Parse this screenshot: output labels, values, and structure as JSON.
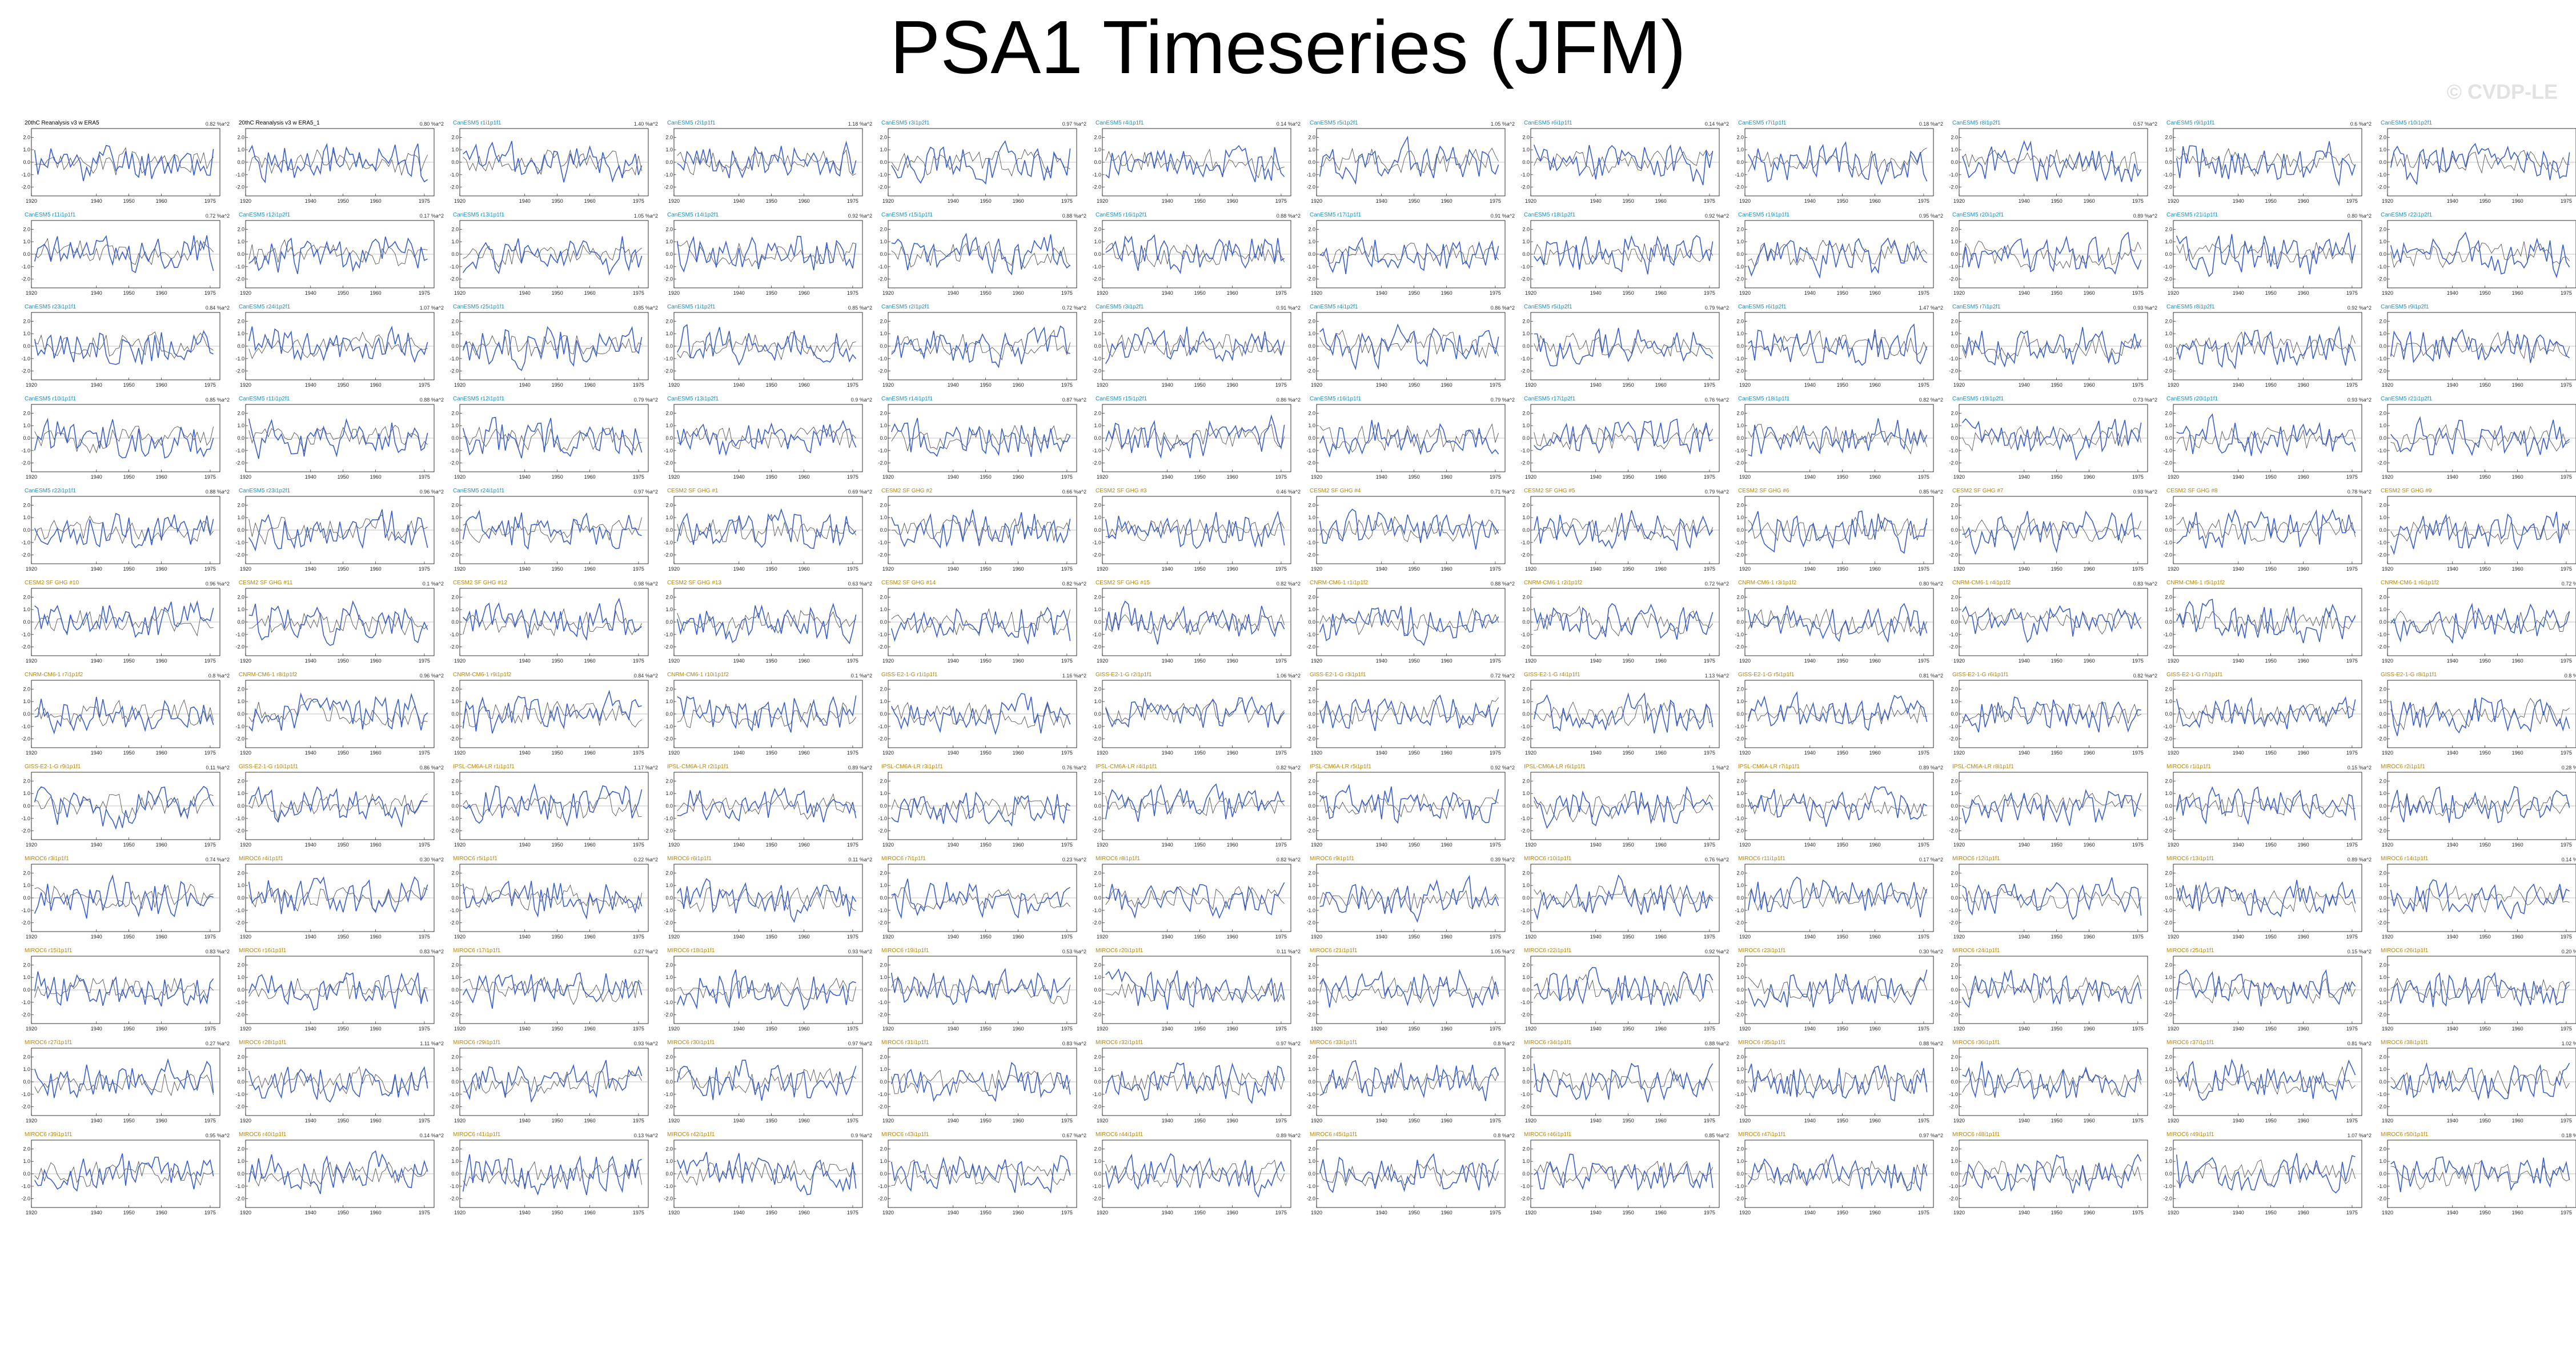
{
  "page": {
    "title": "PSA1 Timeseries (JFM)",
    "watermark": "© CVDP-LE"
  },
  "colors": {
    "observed_line": "#3a5fcd",
    "reference_line": "#555555",
    "zero_line": "#888888",
    "cesm_title": "#1e8fbf",
    "obs_title": "#000000",
    "other_title": "#b8860b"
  },
  "chart_data": {
    "type": "line",
    "rows": 13,
    "cols": 12,
    "x": [
      1920,
      1930,
      1940,
      1950,
      1960,
      1970,
      1975
    ],
    "xticks": [
      "1920",
      "1940",
      "1950",
      "1960",
      "1975"
    ],
    "yticks": [
      "2.0",
      "1.0",
      "0.0",
      "-1.0",
      "-2.0"
    ],
    "ylim": [
      -2.7,
      2.7
    ],
    "panels": [
      {
        "title": "20thC Reanalysis v3 w ERA5",
        "variance": "0.82 %a^2",
        "kind": "obs"
      },
      {
        "title": "20thC Reanalysis v3 w ERA5_1",
        "variance": "0.80 %a^2",
        "kind": "obs"
      },
      {
        "title": "CanESM5 r1i1p1f1",
        "variance": "1.40 %a^2",
        "kind": "cesm"
      },
      {
        "title": "CanESM5 r2i1p1f1",
        "variance": "1.18 %a^2",
        "kind": "cesm"
      },
      {
        "title": "CanESM5 r3i1p2f1",
        "variance": "0.97 %a^2",
        "kind": "cesm"
      },
      {
        "title": "CanESM5 r4i1p1f1",
        "variance": "0.14 %a^2",
        "kind": "cesm"
      },
      {
        "title": "CanESM5 r5i1p2f1",
        "variance": "1.05 %a^2",
        "kind": "cesm"
      },
      {
        "title": "CanESM5 r6i1p1f1",
        "variance": "0.14 %a^2",
        "kind": "cesm"
      },
      {
        "title": "CanESM5 r7i1p1f1",
        "variance": "0.18 %a^2",
        "kind": "cesm"
      },
      {
        "title": "CanESM5 r8i1p2f1",
        "variance": "0.57 %a^2",
        "kind": "cesm"
      },
      {
        "title": "CanESM5 r9i1p1f1",
        "variance": "0.6 %a^2",
        "kind": "cesm"
      },
      {
        "title": "CanESM5 r10i1p2f1",
        "variance": "",
        "kind": "cesm"
      },
      {
        "title": "CanESM5 r11i1p1f1",
        "variance": "0.72 %a^2",
        "kind": "cesm"
      },
      {
        "title": "CanESM5 r12i1p2f1",
        "variance": "0.17 %a^2",
        "kind": "cesm"
      },
      {
        "title": "CanESM5 r13i1p1f1",
        "variance": "1.05 %a^2",
        "kind": "cesm"
      },
      {
        "title": "CanESM5 r14i1p2f1",
        "variance": "0.92 %a^2",
        "kind": "cesm"
      },
      {
        "title": "CanESM5 r15i1p1f1",
        "variance": "0.88 %a^2",
        "kind": "cesm"
      },
      {
        "title": "CanESM5 r16i1p2f1",
        "variance": "0.88 %a^2",
        "kind": "cesm"
      },
      {
        "title": "CanESM5 r17i1p1f1",
        "variance": "0.91 %a^2",
        "kind": "cesm"
      },
      {
        "title": "CanESM5 r18i1p2f1",
        "variance": "0.92 %a^2",
        "kind": "cesm"
      },
      {
        "title": "CanESM5 r19i1p1f1",
        "variance": "0.95 %a^2",
        "kind": "cesm"
      },
      {
        "title": "CanESM5 r20i1p2f1",
        "variance": "0.89 %a^2",
        "kind": "cesm"
      },
      {
        "title": "CanESM5 r21i1p1f1",
        "variance": "0.80 %a^2",
        "kind": "cesm"
      },
      {
        "title": "CanESM5 r22i1p2f1",
        "variance": "",
        "kind": "cesm"
      },
      {
        "title": "CanESM5 r23i1p1f1",
        "variance": "0.84 %a^2",
        "kind": "cesm"
      },
      {
        "title": "CanESM5 r24i1p2f1",
        "variance": "1.07 %a^2",
        "kind": "cesm"
      },
      {
        "title": "CanESM5 r25i1p1f1",
        "variance": "0.85 %a^2",
        "kind": "cesm"
      },
      {
        "title": "CanESM5 r1i1p2f1",
        "variance": "0.85 %a^2",
        "kind": "cesm"
      },
      {
        "title": "CanESM5 r2i1p2f1",
        "variance": "0.72 %a^2",
        "kind": "cesm"
      },
      {
        "title": "CanESM5 r3i1p2f1",
        "variance": "0.91 %a^2",
        "kind": "cesm"
      },
      {
        "title": "CanESM5 r4i1p2f1",
        "variance": "0.86 %a^2",
        "kind": "cesm"
      },
      {
        "title": "CanESM5 r5i1p2f1",
        "variance": "0.79 %a^2",
        "kind": "cesm"
      },
      {
        "title": "CanESM5 r6i1p2f1",
        "variance": "1.47 %a^2",
        "kind": "cesm"
      },
      {
        "title": "CanESM5 r7i1p2f1",
        "variance": "0.93 %a^2",
        "kind": "cesm"
      },
      {
        "title": "CanESM5 r8i1p2f1",
        "variance": "0.92 %a^2",
        "kind": "cesm"
      },
      {
        "title": "CanESM5 r9i1p2f1",
        "variance": "",
        "kind": "cesm"
      },
      {
        "title": "CanESM5 r10i1p1f1",
        "variance": "0.85 %a^2",
        "kind": "cesm"
      },
      {
        "title": "CanESM5 r11i1p2f1",
        "variance": "0.88 %a^2",
        "kind": "cesm"
      },
      {
        "title": "CanESM5 r12i1p1f1",
        "variance": "0.79 %a^2",
        "kind": "cesm"
      },
      {
        "title": "CanESM5 r13i1p2f1",
        "variance": "0.9 %a^2",
        "kind": "cesm"
      },
      {
        "title": "CanESM5 r14i1p1f1",
        "variance": "0.87 %a^2",
        "kind": "cesm"
      },
      {
        "title": "CanESM5 r15i1p2f1",
        "variance": "0.86 %a^2",
        "kind": "cesm"
      },
      {
        "title": "CanESM5 r16i1p1f1",
        "variance": "0.79 %a^2",
        "kind": "cesm"
      },
      {
        "title": "CanESM5 r17i1p2f1",
        "variance": "0.76 %a^2",
        "kind": "cesm"
      },
      {
        "title": "CanESM5 r18i1p1f1",
        "variance": "0.82 %a^2",
        "kind": "cesm"
      },
      {
        "title": "CanESM5 r19i1p2f1",
        "variance": "0.73 %a^2",
        "kind": "cesm"
      },
      {
        "title": "CanESM5 r20i1p1f1",
        "variance": "0.93 %a^2",
        "kind": "cesm"
      },
      {
        "title": "CanESM5 r21i1p2f1",
        "variance": "",
        "kind": "cesm"
      },
      {
        "title": "CanESM5 r22i1p1f1",
        "variance": "0.88 %a^2",
        "kind": "cesm"
      },
      {
        "title": "CanESM5 r23i1p2f1",
        "variance": "0.96 %a^2",
        "kind": "cesm"
      },
      {
        "title": "CanESM5 r24i1p1f1",
        "variance": "0.97 %a^2",
        "kind": "cesm"
      },
      {
        "title": "CESM2 SF GHG #1",
        "variance": "0.69 %a^2",
        "kind": "other"
      },
      {
        "title": "CESM2 SF GHG #2",
        "variance": "0.66 %a^2",
        "kind": "other"
      },
      {
        "title": "CESM2 SF GHG #3",
        "variance": "0.46 %a^2",
        "kind": "other"
      },
      {
        "title": "CESM2 SF GHG #4",
        "variance": "0.71 %a^2",
        "kind": "other"
      },
      {
        "title": "CESM2 SF GHG #5",
        "variance": "0.79 %a^2",
        "kind": "other"
      },
      {
        "title": "CESM2 SF GHG #6",
        "variance": "0.85 %a^2",
        "kind": "other"
      },
      {
        "title": "CESM2 SF GHG #7",
        "variance": "0.93 %a^2",
        "kind": "other"
      },
      {
        "title": "CESM2 SF GHG #8",
        "variance": "0.78 %a^2",
        "kind": "other"
      },
      {
        "title": "CESM2 SF GHG #9",
        "variance": "",
        "kind": "other"
      },
      {
        "title": "CESM2 SF GHG #10",
        "variance": "0.96 %a^2",
        "kind": "other"
      },
      {
        "title": "CESM2 SF GHG #11",
        "variance": "0.1 %a^2",
        "kind": "other"
      },
      {
        "title": "CESM2 SF GHG #12",
        "variance": "0.98 %a^2",
        "kind": "other"
      },
      {
        "title": "CESM2 SF GHG #13",
        "variance": "0.63 %a^2",
        "kind": "other"
      },
      {
        "title": "CESM2 SF GHG #14",
        "variance": "0.82 %a^2",
        "kind": "other"
      },
      {
        "title": "CESM2 SF GHG #15",
        "variance": "0.82 %a^2",
        "kind": "other"
      },
      {
        "title": "CNRM-CM6-1 r1i1p1f2",
        "variance": "0.88 %a^2",
        "kind": "other"
      },
      {
        "title": "CNRM-CM6-1 r2i1p1f2",
        "variance": "0.72 %a^2",
        "kind": "other"
      },
      {
        "title": "CNRM-CM6-1 r3i1p1f2",
        "variance": "0.80 %a^2",
        "kind": "other"
      },
      {
        "title": "CNRM-CM6-1 r4i1p1f2",
        "variance": "0.83 %a^2",
        "kind": "other"
      },
      {
        "title": "CNRM-CM6-1 r5i1p1f2",
        "variance": "",
        "kind": "other"
      },
      {
        "title": "CNRM-CM6-1 r6i1p1f2",
        "variance": "0.72 %a^2",
        "kind": "other"
      },
      {
        "title": "CNRM-CM6-1 r7i1p1f2",
        "variance": "0.8 %a^2",
        "kind": "other"
      },
      {
        "title": "CNRM-CM6-1 r8i1p1f2",
        "variance": "0.96 %a^2",
        "kind": "other"
      },
      {
        "title": "CNRM-CM6-1 r9i1p1f2",
        "variance": "0.84 %a^2",
        "kind": "other"
      },
      {
        "title": "CNRM-CM6-1 r10i1p1f2",
        "variance": "0.1 %a^2",
        "kind": "other"
      },
      {
        "title": "GISS-E2-1-G r1i1p1f1",
        "variance": "1.16 %a^2",
        "kind": "other"
      },
      {
        "title": "GISS-E2-1-G r2i1p1f1",
        "variance": "1.06 %a^2",
        "kind": "other"
      },
      {
        "title": "GISS-E2-1-G r3i1p1f1",
        "variance": "0.72 %a^2",
        "kind": "other"
      },
      {
        "title": "GISS-E2-1-G r4i1p1f1",
        "variance": "1.13 %a^2",
        "kind": "other"
      },
      {
        "title": "GISS-E2-1-G r5i1p1f1",
        "variance": "0.81 %a^2",
        "kind": "other"
      },
      {
        "title": "GISS-E2-1-G r6i1p1f1",
        "variance": "0.82 %a^2",
        "kind": "other"
      },
      {
        "title": "GISS-E2-1-G r7i1p1f1",
        "variance": "",
        "kind": "other"
      },
      {
        "title": "GISS-E2-1-G r8i1p1f1",
        "variance": "0.8 %a^2",
        "kind": "other"
      },
      {
        "title": "GISS-E2-1-G r9i1p1f1",
        "variance": "0.11 %a^2",
        "kind": "other"
      },
      {
        "title": "GISS-E2-1-G r10i1p1f1",
        "variance": "0.86 %a^2",
        "kind": "other"
      },
      {
        "title": "IPSL-CM6A-LR r1i1p1f1",
        "variance": "1.17 %a^2",
        "kind": "other"
      },
      {
        "title": "IPSL-CM6A-LR r2i1p1f1",
        "variance": "0.89 %a^2",
        "kind": "other"
      },
      {
        "title": "IPSL-CM6A-LR r3i1p1f1",
        "variance": "0.76 %a^2",
        "kind": "other"
      },
      {
        "title": "IPSL-CM6A-LR r4i1p1f1",
        "variance": "0.82 %a^2",
        "kind": "other"
      },
      {
        "title": "IPSL-CM6A-LR r5i1p1f1",
        "variance": "0.92 %a^2",
        "kind": "other"
      },
      {
        "title": "IPSL-CM6A-LR r6i1p1f1",
        "variance": "1 %a^2",
        "kind": "other"
      },
      {
        "title": "IPSL-CM6A-LR r7i1p1f1",
        "variance": "0.89 %a^2",
        "kind": "other"
      },
      {
        "title": "IPSL-CM6A-LR r8i1p1f1",
        "variance": "",
        "kind": "other"
      },
      {
        "title": "MIROC6 r1i1p1f1",
        "variance": "0.15 %a^2",
        "kind": "other"
      },
      {
        "title": "MIROC6 r2i1p1f1",
        "variance": "0.28 %a^2",
        "kind": "other"
      },
      {
        "title": "MIROC6 r3i1p1f1",
        "variance": "0.74 %a^2",
        "kind": "other"
      },
      {
        "title": "MIROC6 r4i1p1f1",
        "variance": "0.30 %a^2",
        "kind": "other"
      },
      {
        "title": "MIROC6 r5i1p1f1",
        "variance": "0.22 %a^2",
        "kind": "other"
      },
      {
        "title": "MIROC6 r6i1p1f1",
        "variance": "0.11 %a^2",
        "kind": "other"
      },
      {
        "title": "MIROC6 r7i1p1f1",
        "variance": "0.23 %a^2",
        "kind": "other"
      },
      {
        "title": "MIROC6 r8i1p1f1",
        "variance": "0.82 %a^2",
        "kind": "other"
      },
      {
        "title": "MIROC6 r9i1p1f1",
        "variance": "0.39 %a^2",
        "kind": "other"
      },
      {
        "title": "MIROC6 r10i1p1f1",
        "variance": "0.76 %a^2",
        "kind": "other"
      },
      {
        "title": "MIROC6 r11i1p1f1",
        "variance": "0.17 %a^2",
        "kind": "other"
      },
      {
        "title": "MIROC6 r12i1p1f1",
        "variance": "",
        "kind": "other"
      },
      {
        "title": "MIROC6 r13i1p1f1",
        "variance": "0.89 %a^2",
        "kind": "other"
      },
      {
        "title": "MIROC6 r14i1p1f1",
        "variance": "0.14 %a^2",
        "kind": "other"
      },
      {
        "title": "MIROC6 r15i1p1f1",
        "variance": "0.83 %a^2",
        "kind": "other"
      },
      {
        "title": "MIROC6 r16i1p1f1",
        "variance": "0.83 %a^2",
        "kind": "other"
      },
      {
        "title": "MIROC6 r17i1p1f1",
        "variance": "0.27 %a^2",
        "kind": "other"
      },
      {
        "title": "MIROC6 r18i1p1f1",
        "variance": "0.93 %a^2",
        "kind": "other"
      },
      {
        "title": "MIROC6 r19i1p1f1",
        "variance": "0.53 %a^2",
        "kind": "other"
      },
      {
        "title": "MIROC6 r20i1p1f1",
        "variance": "0.11 %a^2",
        "kind": "other"
      },
      {
        "title": "MIROC6 r21i1p1f1",
        "variance": "1.05 %a^2",
        "kind": "other"
      },
      {
        "title": "MIROC6 r22i1p1f1",
        "variance": "0.92 %a^2",
        "kind": "other"
      },
      {
        "title": "MIROC6 r23i1p1f1",
        "variance": "0.30 %a^2",
        "kind": "other"
      },
      {
        "title": "MIROC6 r24i1p1f1",
        "variance": "",
        "kind": "other"
      },
      {
        "title": "MIROC6 r25i1p1f1",
        "variance": "0.15 %a^2",
        "kind": "other"
      },
      {
        "title": "MIROC6 r26i1p1f1",
        "variance": "0.20 %a^2",
        "kind": "other"
      },
      {
        "title": "MIROC6 r27i1p1f1",
        "variance": "0.27 %a^2",
        "kind": "other"
      },
      {
        "title": "MIROC6 r28i1p1f1",
        "variance": "1.11 %a^2",
        "kind": "other"
      },
      {
        "title": "MIROC6 r29i1p1f1",
        "variance": "0.93 %a^2",
        "kind": "other"
      },
      {
        "title": "MIROC6 r30i1p1f1",
        "variance": "0.97 %a^2",
        "kind": "other"
      },
      {
        "title": "MIROC6 r31i1p1f1",
        "variance": "0.83 %a^2",
        "kind": "other"
      },
      {
        "title": "MIROC6 r32i1p1f1",
        "variance": "0.97 %a^2",
        "kind": "other"
      },
      {
        "title": "MIROC6 r33i1p1f1",
        "variance": "0.8 %a^2",
        "kind": "other"
      },
      {
        "title": "MIROC6 r34i1p1f1",
        "variance": "0.88 %a^2",
        "kind": "other"
      },
      {
        "title": "MIROC6 r35i1p1f1",
        "variance": "0.88 %a^2",
        "kind": "other"
      },
      {
        "title": "MIROC6 r36i1p1f1",
        "variance": "",
        "kind": "other"
      },
      {
        "title": "MIROC6 r37i1p1f1",
        "variance": "0.81 %a^2",
        "kind": "other"
      },
      {
        "title": "MIROC6 r38i1p1f1",
        "variance": "1.02 %a^2",
        "kind": "other"
      },
      {
        "title": "MIROC6 r39i1p1f1",
        "variance": "0.95 %a^2",
        "kind": "other"
      },
      {
        "title": "MIROC6 r40i1p1f1",
        "variance": "0.14 %a^2",
        "kind": "other"
      },
      {
        "title": "MIROC6 r41i1p1f1",
        "variance": "0.13 %a^2",
        "kind": "other"
      },
      {
        "title": "MIROC6 r42i1p1f1",
        "variance": "0.9 %a^2",
        "kind": "other"
      },
      {
        "title": "MIROC6 r43i1p1f1",
        "variance": "0.67 %a^2",
        "kind": "other"
      },
      {
        "title": "MIROC6 r44i1p1f1",
        "variance": "0.89 %a^2",
        "kind": "other"
      },
      {
        "title": "MIROC6 r45i1p1f1",
        "variance": "0.8 %a^2",
        "kind": "other"
      },
      {
        "title": "MIROC6 r46i1p1f1",
        "variance": "0.85 %a^2",
        "kind": "other"
      },
      {
        "title": "MIROC6 r47i1p1f1",
        "variance": "0.97 %a^2",
        "kind": "other"
      },
      {
        "title": "MIROC6 r48i1p1f1",
        "variance": "",
        "kind": "other"
      },
      {
        "title": "MIROC6 r49i1p1f1",
        "variance": "1.07 %a^2",
        "kind": "other"
      },
      {
        "title": "MIROC6 r50i1p1f1",
        "variance": "0.18 %a^2",
        "kind": "other"
      }
    ],
    "last_row_offset_cols": 5
  }
}
